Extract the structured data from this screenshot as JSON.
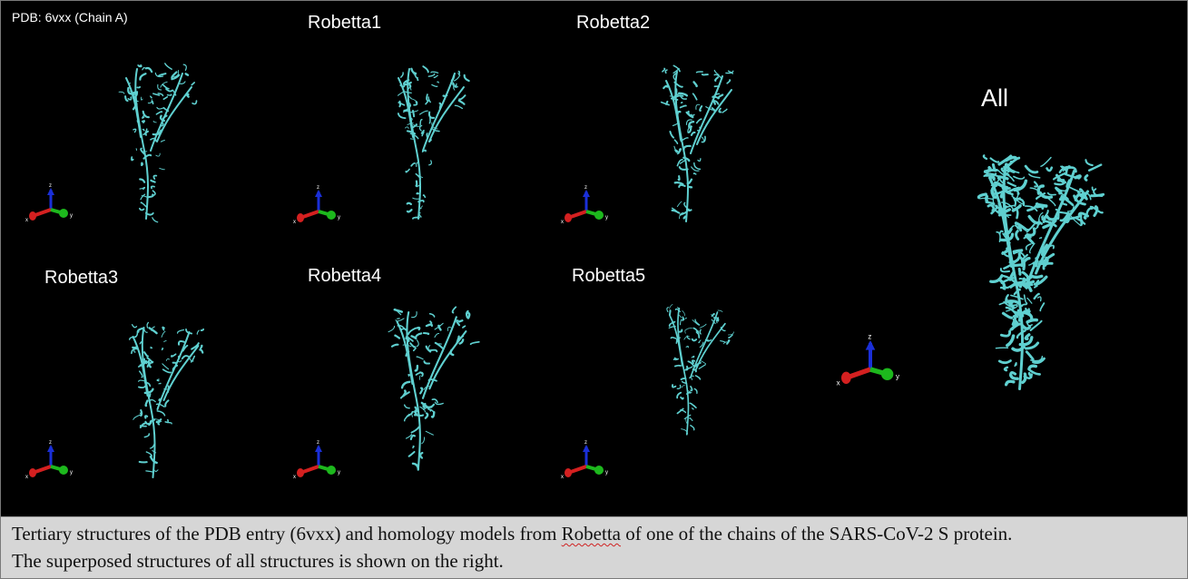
{
  "panels": [
    {
      "id": "pdb",
      "label": "PDB: 6vxx (Chain A)"
    },
    {
      "id": "r1",
      "label": "Robetta1"
    },
    {
      "id": "r2",
      "label": "Robetta2"
    },
    {
      "id": "r3",
      "label": "Robetta3"
    },
    {
      "id": "r4",
      "label": "Robetta4"
    },
    {
      "id": "r5",
      "label": "Robetta5"
    },
    {
      "id": "all",
      "label": "All"
    }
  ],
  "axes_labels": {
    "x": "x",
    "y": "y",
    "z": "z"
  },
  "colors": {
    "protein": "#5fd0d0",
    "axis_x": "#d42020",
    "axis_y": "#1db81d",
    "axis_z": "#1a2fd8",
    "background": "#000000",
    "caption_bg": "#d6d6d6"
  },
  "caption": {
    "line1_before": "Tertiary structures of the PDB entry (6vxx) and homology models from ",
    "line1_marked": "Robetta",
    "line1_after": " of one of the chains of the SARS-CoV-2 S protein.",
    "line2": "The superposed structures of all structures is shown on the right."
  }
}
